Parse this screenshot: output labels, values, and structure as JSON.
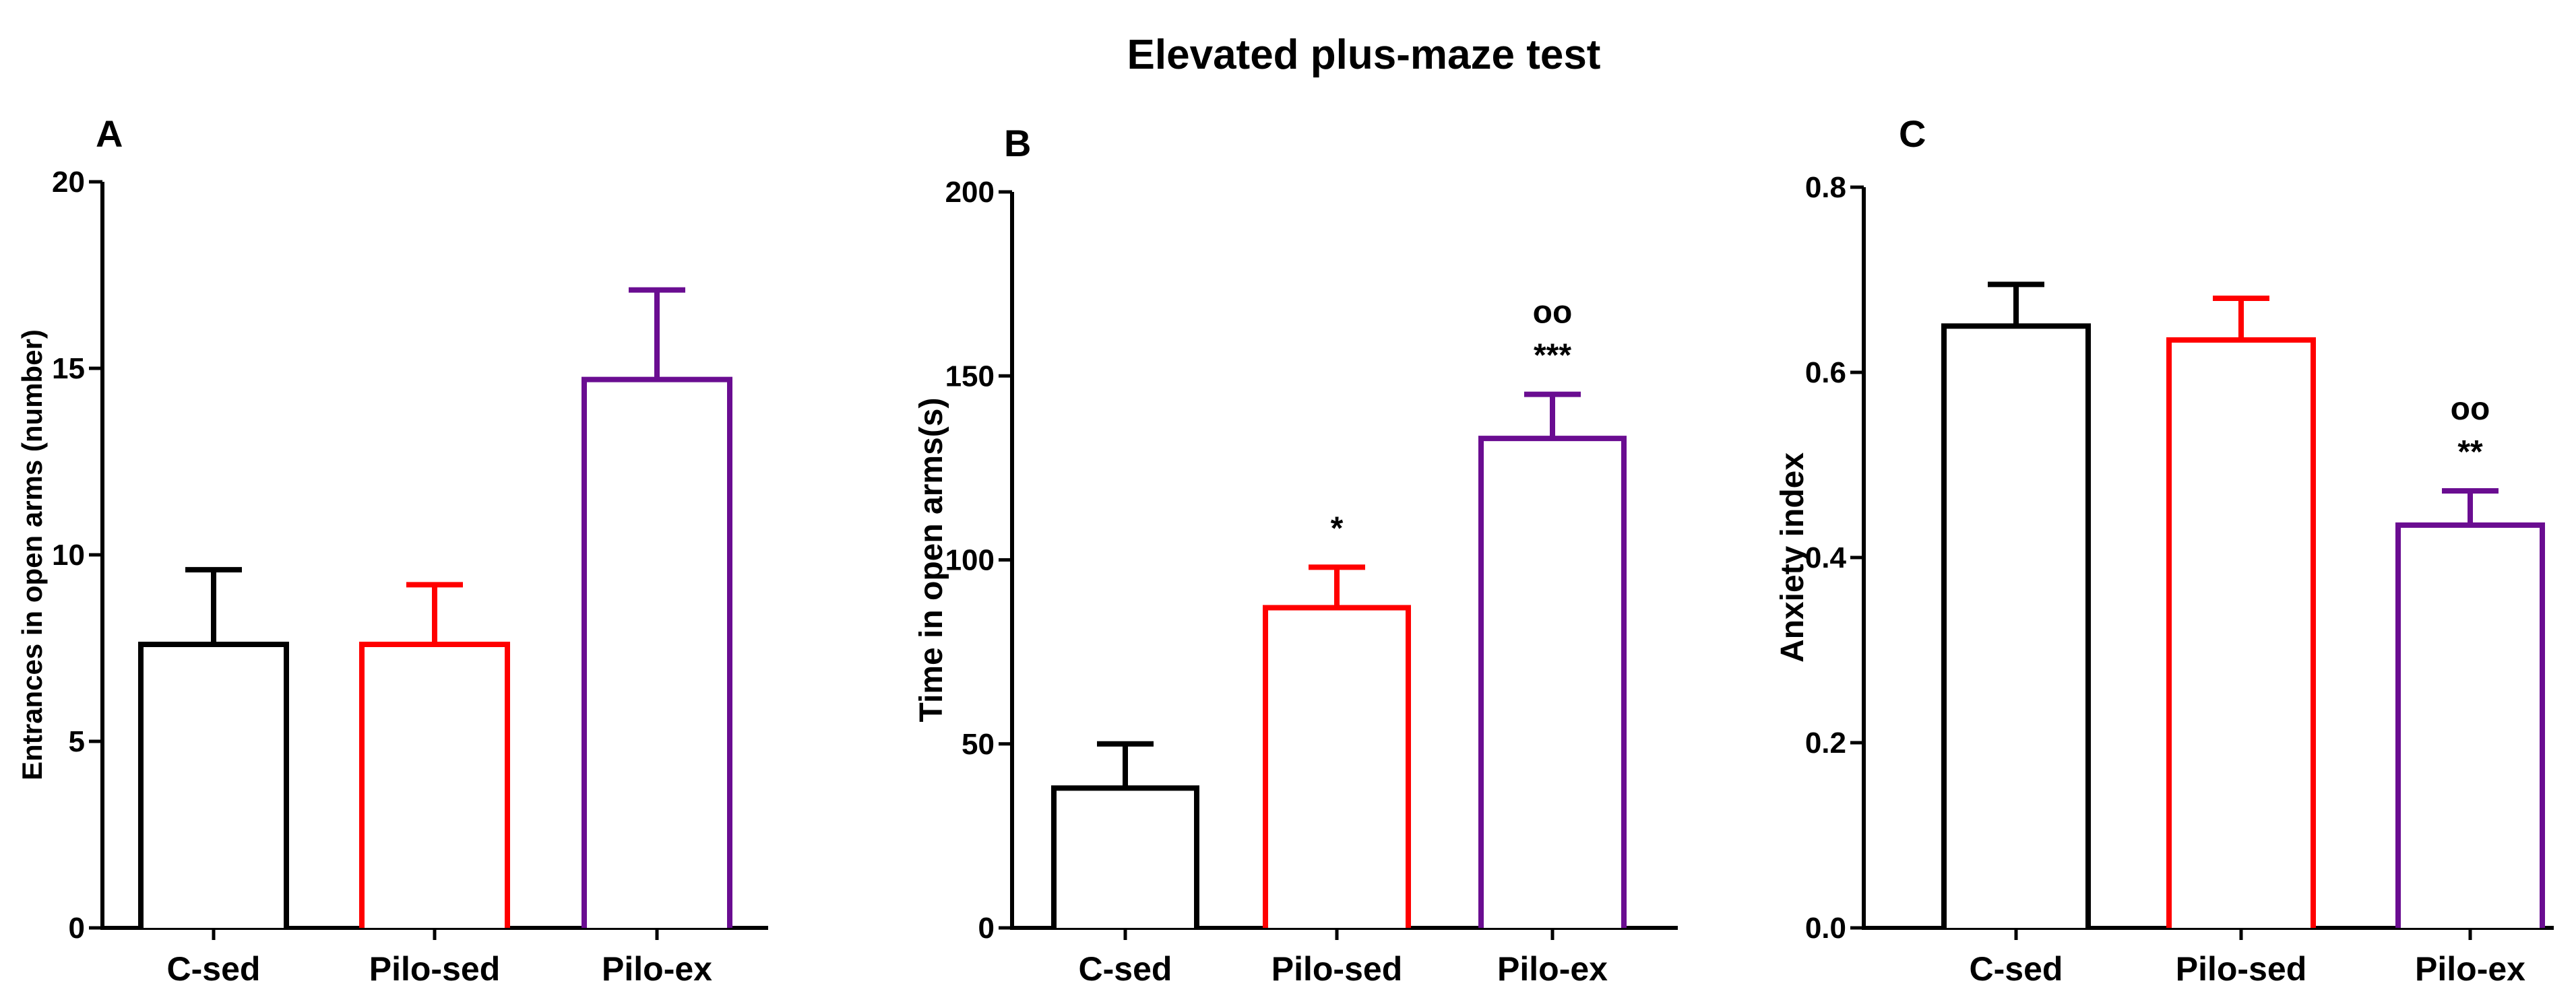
{
  "figure_title": "Elevated plus-maze test",
  "chart_data": [
    {
      "type": "bar",
      "panel": "A",
      "title": "",
      "xlabel": "",
      "ylabel": "Entrances in open arms (number)",
      "categories": [
        "C-sed",
        "Pilo-sed",
        "Pilo-ex"
      ],
      "values": [
        7.6,
        7.6,
        14.7
      ],
      "errors": [
        2.0,
        1.6,
        2.4
      ],
      "colors": [
        "#000000",
        "#ff0000",
        "#6a0d91"
      ],
      "annotations": [
        [],
        [],
        []
      ],
      "ylim": [
        0,
        20
      ],
      "yticks": [
        "0",
        "5",
        "10",
        "15",
        "20"
      ],
      "grid": false,
      "legend": "none"
    },
    {
      "type": "bar",
      "panel": "B",
      "title": "",
      "xlabel": "",
      "ylabel": "Time in open arms(s)",
      "categories": [
        "C-sed",
        "Pilo-sed",
        "Pilo-ex"
      ],
      "values": [
        38,
        87,
        133
      ],
      "errors": [
        12,
        11,
        12
      ],
      "colors": [
        "#000000",
        "#ff0000",
        "#6a0d91"
      ],
      "annotations": [
        [],
        [
          "*"
        ],
        [
          "oo",
          "***"
        ]
      ],
      "ylim": [
        0,
        200
      ],
      "yticks": [
        "0",
        "50",
        "100",
        "150",
        "200"
      ],
      "grid": false,
      "legend": "none"
    },
    {
      "type": "bar",
      "panel": "C",
      "title": "",
      "xlabel": "",
      "ylabel": "Anxiety index",
      "categories": [
        "C-sed",
        "Pilo-sed",
        "Pilo-ex"
      ],
      "values": [
        0.65,
        0.635,
        0.435
      ],
      "errors": [
        0.045,
        0.045,
        0.037
      ],
      "colors": [
        "#000000",
        "#ff0000",
        "#6a0d91"
      ],
      "annotations": [
        [],
        [],
        [
          "oo",
          "**"
        ]
      ],
      "ylim": [
        0,
        0.8
      ],
      "yticks": [
        "0.0",
        "0.2",
        "0.4",
        "0.6",
        "0.8"
      ],
      "grid": false,
      "legend": "none"
    }
  ]
}
